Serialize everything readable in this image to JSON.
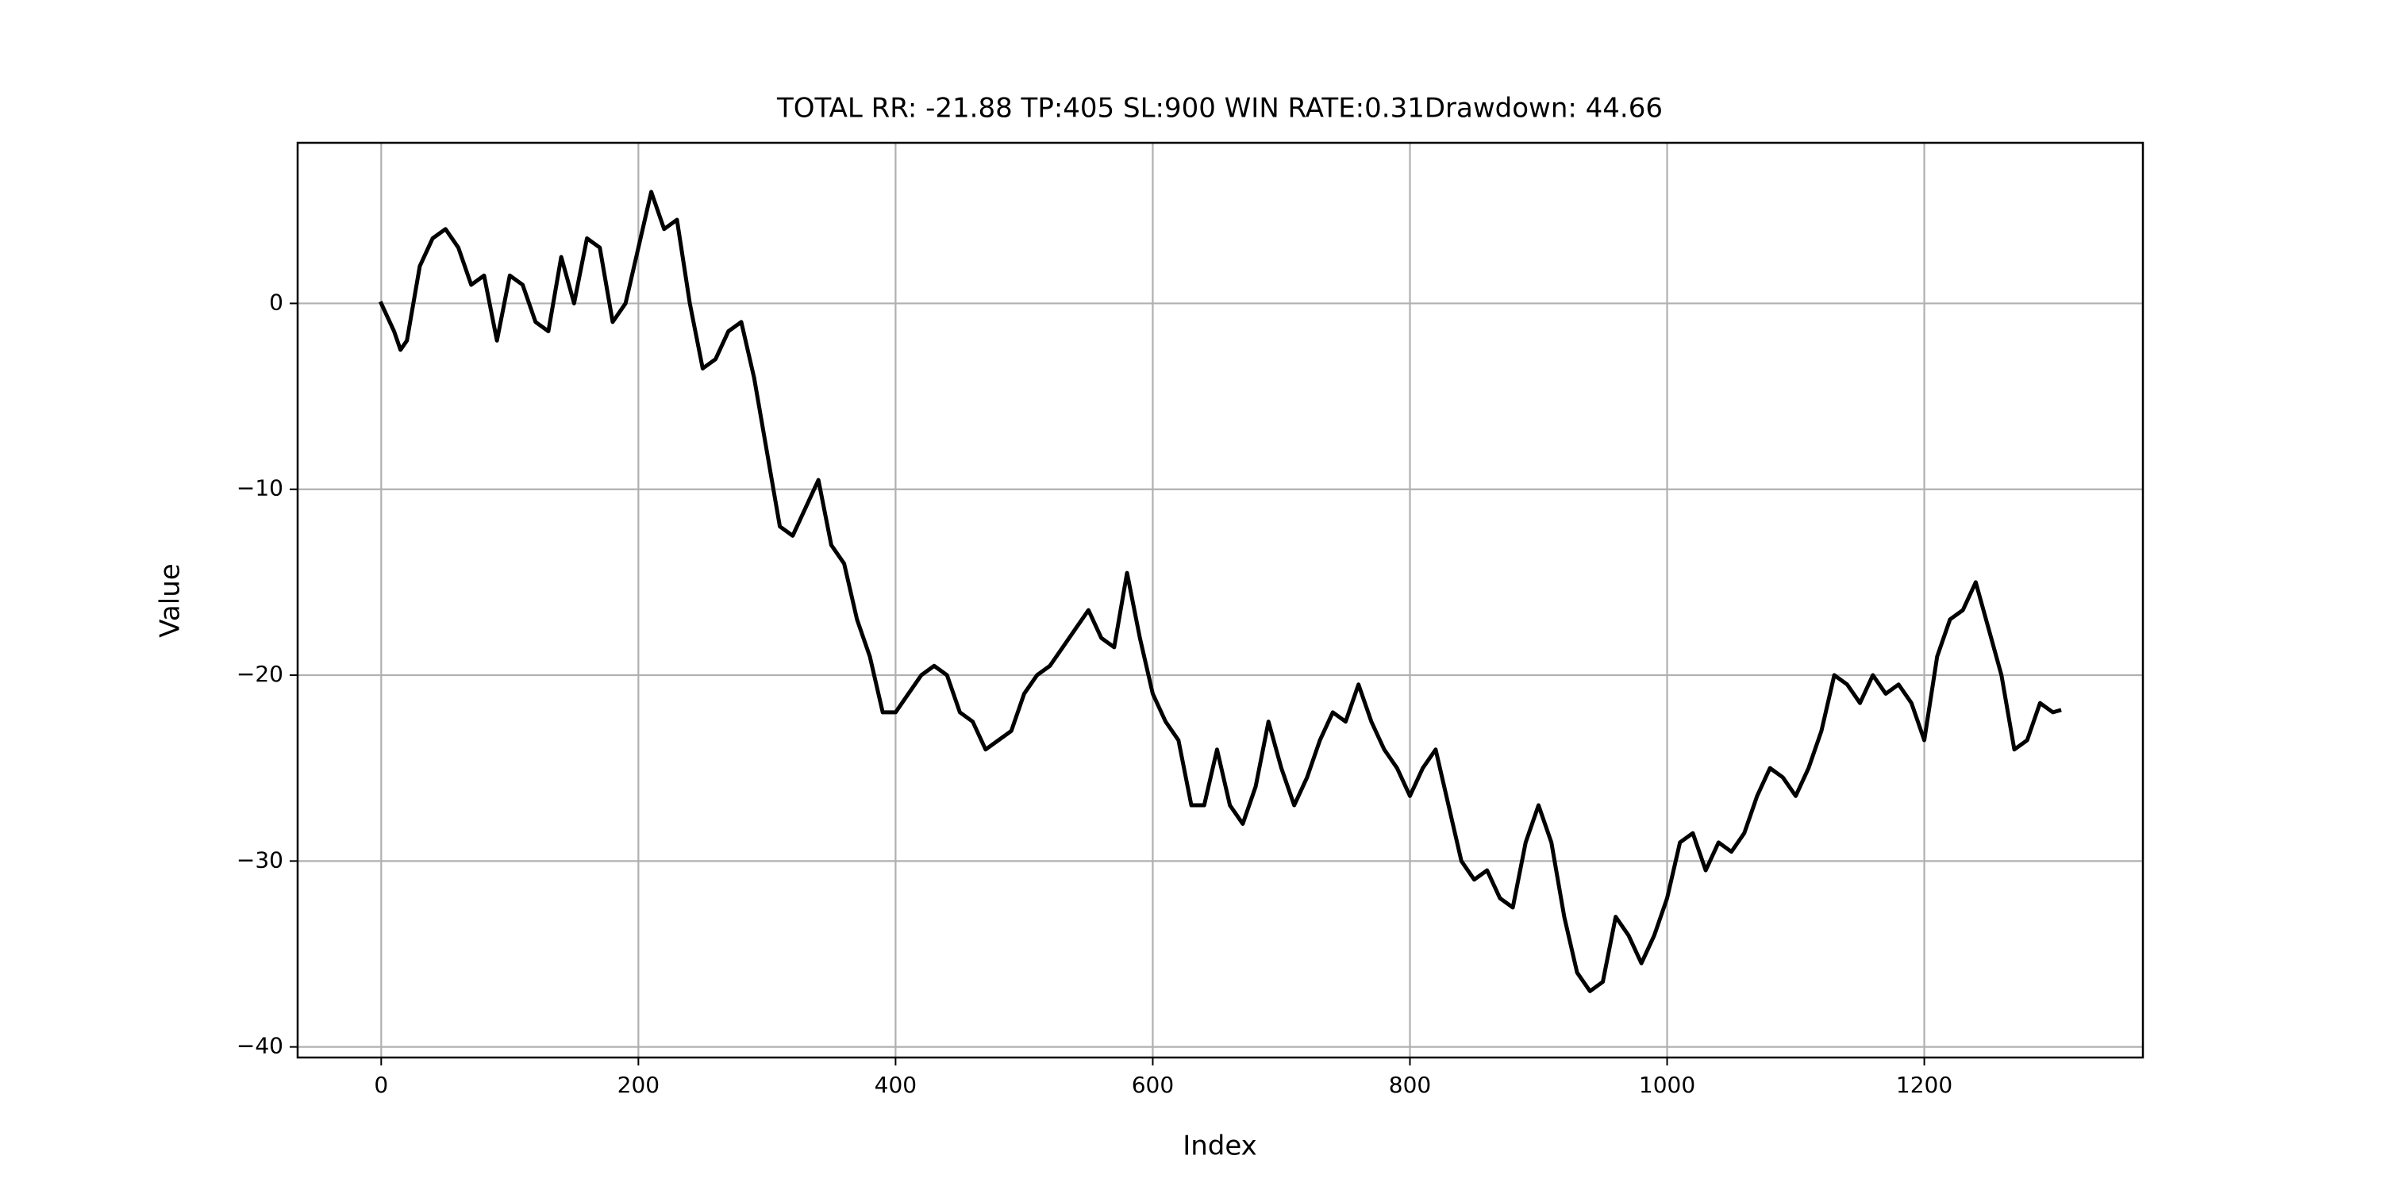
{
  "chart_data": {
    "type": "line",
    "title": "TOTAL RR: -21.88 TP:405 SL:900 WIN RATE:0.31Drawdown: 44.66",
    "xlabel": "Index",
    "ylabel": "Value",
    "x": [
      0,
      10,
      15,
      20,
      30,
      40,
      50,
      60,
      70,
      80,
      90,
      100,
      110,
      120,
      130,
      140,
      150,
      160,
      170,
      180,
      190,
      200,
      210,
      220,
      230,
      240,
      250,
      260,
      270,
      280,
      290,
      300,
      310,
      320,
      330,
      340,
      350,
      360,
      370,
      380,
      390,
      400,
      410,
      420,
      430,
      440,
      450,
      460,
      470,
      480,
      490,
      500,
      510,
      520,
      530,
      540,
      550,
      560,
      570,
      580,
      590,
      600,
      610,
      620,
      630,
      640,
      650,
      660,
      670,
      680,
      690,
      700,
      710,
      720,
      730,
      740,
      750,
      760,
      770,
      780,
      790,
      800,
      810,
      820,
      830,
      840,
      850,
      860,
      870,
      880,
      890,
      900,
      910,
      920,
      930,
      940,
      950,
      960,
      970,
      980,
      990,
      1000,
      1010,
      1020,
      1030,
      1040,
      1050,
      1060,
      1070,
      1080,
      1090,
      1100,
      1110,
      1120,
      1130,
      1140,
      1150,
      1160,
      1170,
      1180,
      1190,
      1200,
      1210,
      1220,
      1230,
      1240,
      1250,
      1260,
      1270,
      1280,
      1290,
      1300,
      1305
    ],
    "series": [
      {
        "name": "Value",
        "color": "#000000",
        "values": [
          0,
          -1.5,
          -2.5,
          -2,
          2,
          3.5,
          4,
          3,
          1,
          1.5,
          -2,
          1.5,
          1,
          -1,
          -1.5,
          2.5,
          0,
          3.5,
          3,
          -1,
          0,
          3,
          6,
          4,
          4.5,
          0,
          -3.5,
          -3,
          -1.5,
          -1,
          -4,
          -8,
          -12,
          -12.5,
          -11,
          -9.5,
          -13,
          -14,
          -17,
          -19,
          -22,
          -22,
          -21,
          -20,
          -19.5,
          -20,
          -22,
          -22.5,
          -24,
          -23.5,
          -23,
          -21,
          -20,
          -19.5,
          -18.5,
          -17.5,
          -16.5,
          -18,
          -18.5,
          -14.5,
          -18,
          -21,
          -22.5,
          -23.5,
          -27,
          -27,
          -24,
          -27,
          -28,
          -26,
          -22.5,
          -25,
          -27,
          -25.5,
          -23.5,
          -22,
          -22.5,
          -20.5,
          -22.5,
          -24,
          -25,
          -26.5,
          -25,
          -24,
          -27,
          -30,
          -31,
          -30.5,
          -32,
          -32.5,
          -29,
          -27,
          -29,
          -33,
          -36,
          -37,
          -36.5,
          -33,
          -34,
          -35.5,
          -34,
          -32,
          -29,
          -28.5,
          -30.5,
          -29,
          -29.5,
          -28.5,
          -26.5,
          -25,
          -25.5,
          -26.5,
          -25,
          -23,
          -20,
          -20.5,
          -21.5,
          -20,
          -21,
          -20.5,
          -21.5,
          -23.5,
          -19,
          -17,
          -16.5,
          -15,
          -17.5,
          -20,
          -24,
          -23.5,
          -21.5,
          -22,
          -21.9
        ]
      }
    ],
    "xlim": [
      -65,
      1370
    ],
    "ylim": [
      -40.57,
      8.64
    ],
    "xticks": [
      0,
      200,
      400,
      600,
      800,
      1000,
      1200
    ],
    "yticks": [
      {
        "value": -40,
        "label": "−40"
      },
      {
        "value": -30,
        "label": "−30"
      },
      {
        "value": -20,
        "label": "−20"
      },
      {
        "value": -10,
        "label": "−10"
      },
      0
    ],
    "grid": true
  }
}
